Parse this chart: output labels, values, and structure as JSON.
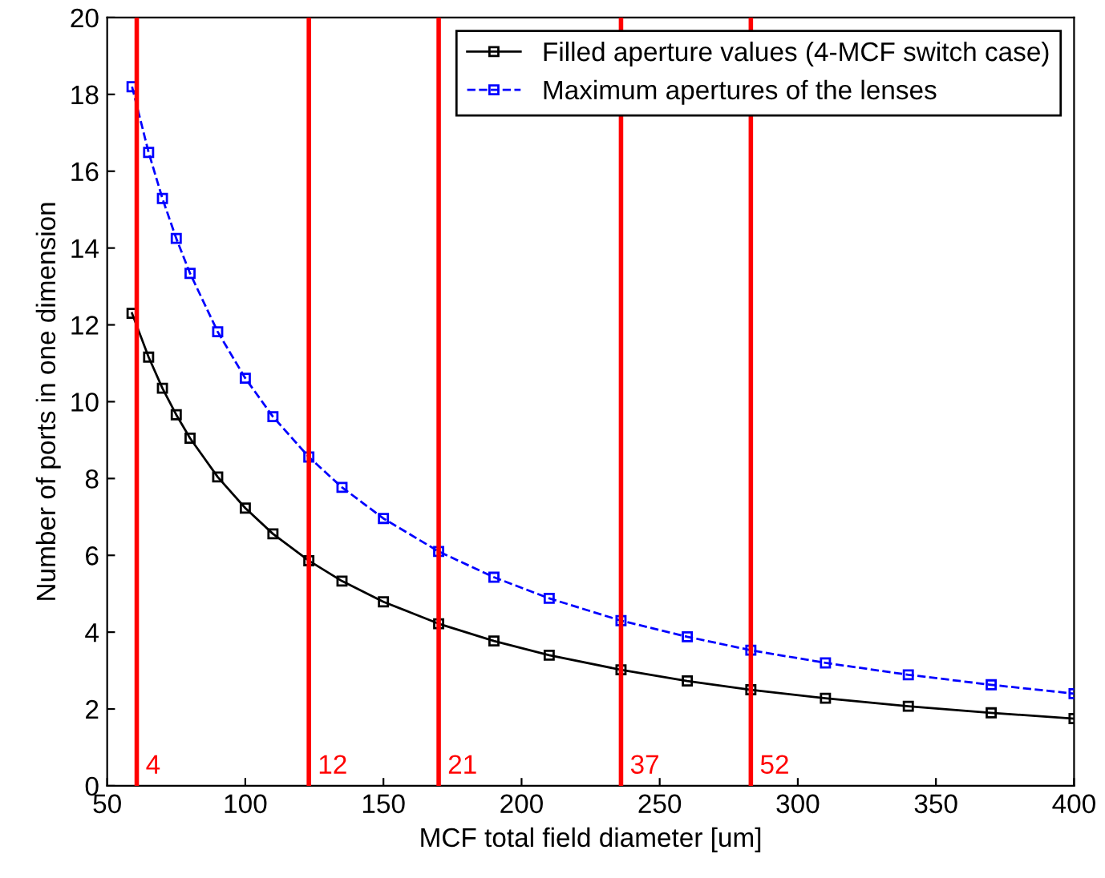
{
  "chart_data": {
    "type": "line",
    "xlabel": "MCF total field diameter [um]",
    "ylabel": "Number of ports in one dimension",
    "xlim": [
      50,
      400
    ],
    "xticks": [
      50,
      100,
      150,
      200,
      250,
      300,
      350,
      400
    ],
    "ylim": [
      0,
      20
    ],
    "yticks": [
      0,
      2,
      4,
      6,
      8,
      10,
      12,
      14,
      16,
      18,
      20
    ],
    "grid": false,
    "legend": "top right",
    "marker": "square",
    "x": [
      59,
      65,
      70,
      75,
      80,
      90,
      100,
      110,
      123,
      135,
      150,
      170,
      190,
      210,
      236,
      260,
      283,
      310,
      340,
      370,
      400
    ],
    "series": [
      {
        "name": "Filled aperture values (4-MCF switch case)",
        "color": "#000000",
        "line_style": "solid",
        "values": [
          12.3,
          11.16,
          10.35,
          9.66,
          9.05,
          8.04,
          7.23,
          6.56,
          5.86,
          5.33,
          4.79,
          4.22,
          3.77,
          3.4,
          3.02,
          2.73,
          2.5,
          2.28,
          2.07,
          1.9,
          1.75
        ]
      },
      {
        "name": "Maximum apertures of the lenses",
        "color": "#0000ff",
        "line_style": "dashed",
        "values": [
          18.2,
          16.49,
          15.29,
          14.25,
          13.34,
          11.82,
          10.61,
          9.61,
          8.56,
          7.77,
          6.96,
          6.1,
          5.43,
          4.88,
          4.3,
          3.88,
          3.53,
          3.2,
          2.89,
          2.63,
          2.4
        ]
      }
    ],
    "ref_lines": [
      {
        "axis": "x",
        "value": 60.7,
        "color": "#ff0000"
      },
      {
        "axis": "x",
        "value": 123,
        "color": "#ff0000"
      },
      {
        "axis": "x",
        "value": 170,
        "color": "#ff0000"
      },
      {
        "axis": "x",
        "value": 236,
        "color": "#ff0000"
      },
      {
        "axis": "x",
        "value": 283,
        "color": "#ff0000"
      }
    ],
    "annotations": [
      {
        "text": "4",
        "x": 60.7,
        "y": 0
      },
      {
        "text": "12",
        "x": 123,
        "y": 0
      },
      {
        "text": "21",
        "x": 170,
        "y": 0
      },
      {
        "text": "37",
        "x": 236,
        "y": 0
      },
      {
        "text": "52",
        "x": 283,
        "y": 0
      }
    ]
  }
}
